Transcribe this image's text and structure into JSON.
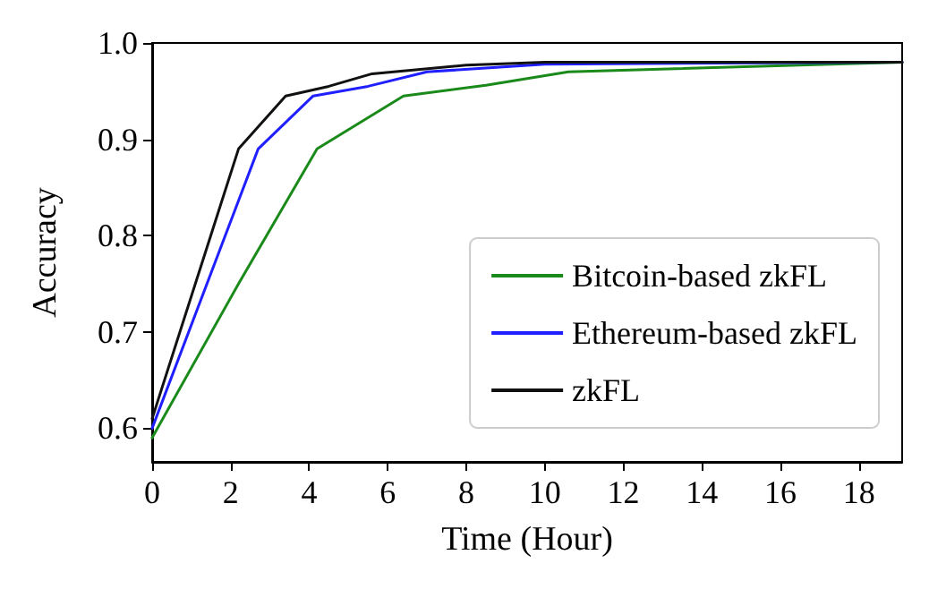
{
  "chart_data": {
    "type": "line",
    "xlabel": "Time (Hour)",
    "ylabel": "Accuracy",
    "xlim": [
      0,
      19.1
    ],
    "ylim": [
      0.565,
      1.0
    ],
    "xticks": [
      0,
      2,
      4,
      6,
      8,
      10,
      12,
      14,
      16,
      18
    ],
    "yticks": [
      {
        "value": 0.6,
        "label": "0.6"
      },
      {
        "value": 0.7,
        "label": "0.7"
      },
      {
        "value": 0.8,
        "label": "0.8"
      },
      {
        "value": 0.9,
        "label": "0.9"
      },
      {
        "value": 1,
        "label": "1.0"
      }
    ],
    "grid": false,
    "legend": "bottom right",
    "marker": "none",
    "line_style": "solid",
    "series": [
      {
        "name": "Bitcoin-based zkFL",
        "color": "#1a8a1a",
        "x": [
          0,
          2.2,
          4.2,
          6.4,
          8.5,
          10.6,
          19.1
        ],
        "values": [
          0.59,
          0.75,
          0.89,
          0.945,
          0.956,
          0.97,
          0.98
        ]
      },
      {
        "name": "Ethereum-based zkFL",
        "color": "#1f1fff",
        "x": [
          0,
          2.7,
          4.1,
          5.5,
          7,
          10,
          19.1
        ],
        "values": [
          0.6,
          0.89,
          0.945,
          0.955,
          0.97,
          0.978,
          0.98
        ]
      },
      {
        "name": "zkFL",
        "color": "#111111",
        "x": [
          0,
          2.2,
          3.4,
          4.5,
          5.6,
          8,
          10,
          19.1
        ],
        "values": [
          0.61,
          0.89,
          0.945,
          0.955,
          0.968,
          0.977,
          0.98,
          0.98
        ]
      }
    ]
  }
}
